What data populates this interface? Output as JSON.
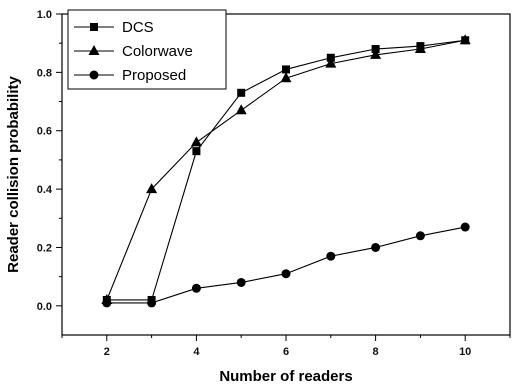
{
  "chart_data": {
    "type": "line",
    "xlabel": "Number of readers",
    "ylabel": "Reader collision probability",
    "xlim": [
      1,
      11
    ],
    "ylim": [
      -0.1,
      1.0
    ],
    "xticks": [
      2,
      4,
      6,
      8,
      10
    ],
    "yticks": [
      0.0,
      0.2,
      0.4,
      0.6,
      0.8,
      1.0
    ],
    "ytick_labels": [
      "0.0",
      "0.2",
      "0.4",
      "0.6",
      "0.8",
      "1.0"
    ],
    "grid": false,
    "legend_position": "top-left",
    "x": [
      2,
      3,
      4,
      5,
      6,
      7,
      8,
      9,
      10
    ],
    "series": [
      {
        "name": "DCS",
        "marker": "square",
        "color": "#000000",
        "values": [
          0.02,
          0.02,
          0.53,
          0.73,
          0.81,
          0.85,
          0.88,
          0.89,
          0.91
        ]
      },
      {
        "name": "Colorwave",
        "marker": "triangle",
        "color": "#000000",
        "values": [
          0.02,
          0.4,
          0.56,
          0.67,
          0.78,
          0.83,
          0.86,
          0.88,
          0.91
        ]
      },
      {
        "name": "Proposed",
        "marker": "circle",
        "color": "#000000",
        "values": [
          0.01,
          0.01,
          0.06,
          0.08,
          0.11,
          0.17,
          0.2,
          0.24,
          0.27
        ]
      }
    ]
  }
}
